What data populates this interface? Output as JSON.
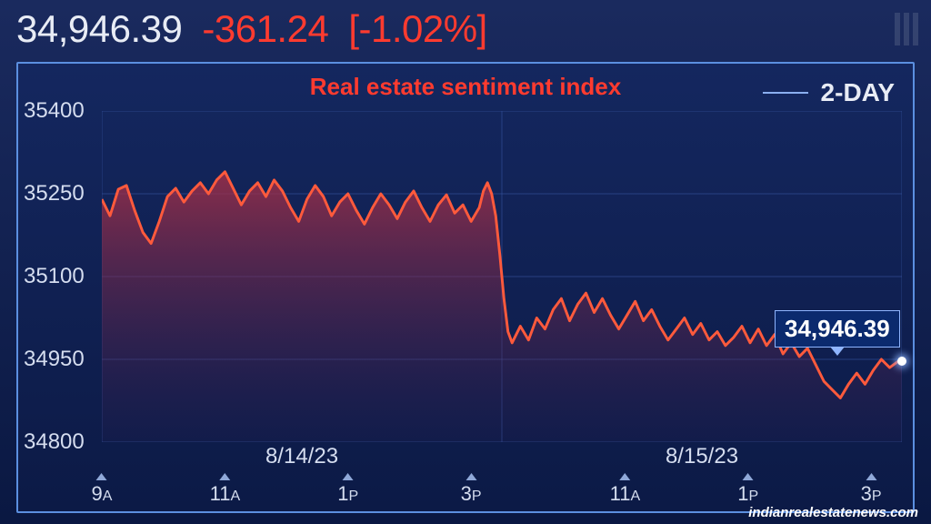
{
  "header": {
    "current_value": "34,946.39",
    "change_abs": "-361.24",
    "change_pct": "[-1.02%]",
    "value_color": "#e8ecf5",
    "change_color": "#ff3b2f"
  },
  "chart": {
    "type": "area",
    "title": "Real estate sentiment index",
    "title_color": "#ff3b2f",
    "timerange_label": "2-DAY",
    "background_gradient_top": "#14275f",
    "background_gradient_bottom": "#0c1a46",
    "border_color": "#5b8fe0",
    "line_color": "#ff5a3c",
    "line_width": 3,
    "fill_top_color": "rgba(172,48,70,0.78)",
    "fill_bottom_color": "rgba(60,30,80,0.10)",
    "grid_color": "#3a5aa8",
    "grid_opacity": 0.55,
    "ylim": [
      34800,
      35400
    ],
    "ytick_step": 150,
    "yticks": [
      35400,
      35250,
      35100,
      34950,
      34800
    ],
    "x_total_minutes": 780,
    "vgrid_minutes": [
      0,
      390,
      780
    ],
    "dates": [
      {
        "label": "8/14/23",
        "minute": 195
      },
      {
        "label": "8/15/23",
        "minute": 585
      }
    ],
    "xticks": [
      {
        "minute": 0,
        "label": "9",
        "suffix": "A"
      },
      {
        "minute": 120,
        "label": "11",
        "suffix": "A"
      },
      {
        "minute": 240,
        "label": "1",
        "suffix": "P"
      },
      {
        "minute": 360,
        "label": "3",
        "suffix": "P"
      },
      {
        "minute": 510,
        "label": "11",
        "suffix": "A"
      },
      {
        "minute": 630,
        "label": "1",
        "suffix": "P"
      },
      {
        "minute": 750,
        "label": "3",
        "suffix": "P"
      }
    ],
    "series": [
      [
        0,
        35240
      ],
      [
        8,
        35210
      ],
      [
        16,
        35258
      ],
      [
        24,
        35265
      ],
      [
        32,
        35220
      ],
      [
        40,
        35180
      ],
      [
        48,
        35160
      ],
      [
        56,
        35200
      ],
      [
        64,
        35245
      ],
      [
        72,
        35260
      ],
      [
        80,
        35235
      ],
      [
        88,
        35255
      ],
      [
        96,
        35270
      ],
      [
        104,
        35250
      ],
      [
        112,
        35275
      ],
      [
        120,
        35290
      ],
      [
        128,
        35260
      ],
      [
        136,
        35230
      ],
      [
        144,
        35255
      ],
      [
        152,
        35270
      ],
      [
        160,
        35245
      ],
      [
        168,
        35275
      ],
      [
        176,
        35255
      ],
      [
        184,
        35225
      ],
      [
        192,
        35200
      ],
      [
        200,
        35240
      ],
      [
        208,
        35265
      ],
      [
        216,
        35245
      ],
      [
        224,
        35210
      ],
      [
        232,
        35235
      ],
      [
        240,
        35250
      ],
      [
        248,
        35220
      ],
      [
        256,
        35195
      ],
      [
        264,
        35225
      ],
      [
        272,
        35250
      ],
      [
        280,
        35230
      ],
      [
        288,
        35205
      ],
      [
        296,
        35235
      ],
      [
        304,
        35255
      ],
      [
        312,
        35225
      ],
      [
        320,
        35200
      ],
      [
        328,
        35230
      ],
      [
        336,
        35248
      ],
      [
        344,
        35215
      ],
      [
        352,
        35230
      ],
      [
        360,
        35200
      ],
      [
        368,
        35225
      ],
      [
        372,
        35255
      ],
      [
        376,
        35270
      ],
      [
        380,
        35250
      ],
      [
        384,
        35210
      ],
      [
        388,
        35140
      ],
      [
        392,
        35060
      ],
      [
        396,
        35000
      ],
      [
        400,
        34980
      ],
      [
        408,
        35010
      ],
      [
        416,
        34985
      ],
      [
        424,
        35025
      ],
      [
        432,
        35005
      ],
      [
        440,
        35040
      ],
      [
        448,
        35060
      ],
      [
        456,
        35020
      ],
      [
        464,
        35050
      ],
      [
        472,
        35070
      ],
      [
        480,
        35035
      ],
      [
        488,
        35060
      ],
      [
        496,
        35030
      ],
      [
        504,
        35005
      ],
      [
        512,
        35030
      ],
      [
        520,
        35055
      ],
      [
        528,
        35020
      ],
      [
        536,
        35040
      ],
      [
        544,
        35010
      ],
      [
        552,
        34985
      ],
      [
        560,
        35005
      ],
      [
        568,
        35025
      ],
      [
        576,
        34995
      ],
      [
        584,
        35015
      ],
      [
        592,
        34985
      ],
      [
        600,
        35000
      ],
      [
        608,
        34975
      ],
      [
        616,
        34990
      ],
      [
        624,
        35010
      ],
      [
        632,
        34980
      ],
      [
        640,
        35005
      ],
      [
        648,
        34975
      ],
      [
        656,
        34995
      ],
      [
        664,
        34960
      ],
      [
        672,
        34980
      ],
      [
        680,
        34955
      ],
      [
        688,
        34970
      ],
      [
        696,
        34940
      ],
      [
        704,
        34910
      ],
      [
        712,
        34895
      ],
      [
        720,
        34880
      ],
      [
        728,
        34905
      ],
      [
        736,
        34925
      ],
      [
        744,
        34905
      ],
      [
        752,
        34930
      ],
      [
        760,
        34950
      ],
      [
        768,
        34935
      ],
      [
        776,
        34946
      ],
      [
        780,
        34946
      ]
    ],
    "last_point": {
      "minute": 780,
      "value": 34946.39,
      "label": "34,946.39"
    }
  },
  "watermark": "indianrealestatenews.com"
}
